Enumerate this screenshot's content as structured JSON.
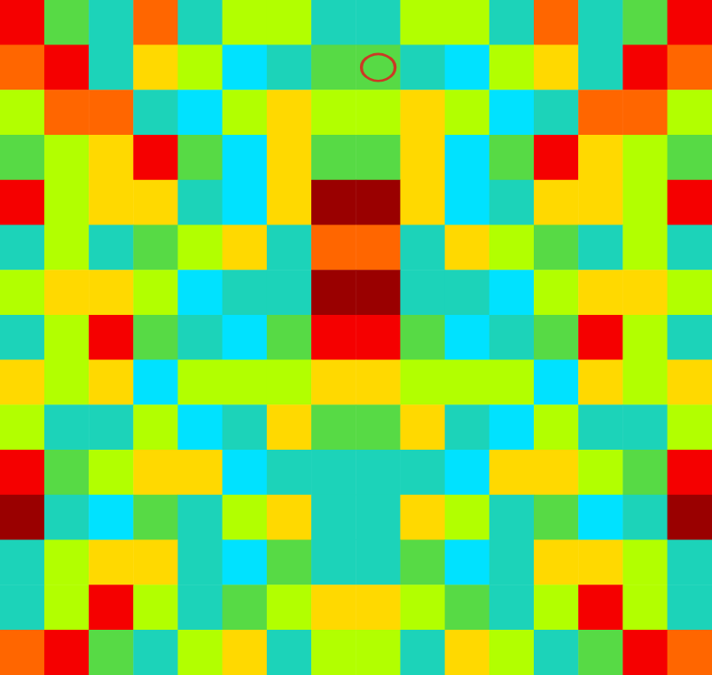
{
  "chart_data": {
    "type": "heatmap",
    "tick_labels": false,
    "grid": false,
    "zlim": [
      0,
      10
    ],
    "cells": [
      [
        9,
        5,
        4,
        8,
        4,
        6,
        6,
        4,
        4,
        6,
        6,
        4,
        8,
        4,
        5,
        9
      ],
      [
        8,
        9,
        4,
        7,
        6,
        3,
        4,
        5,
        5,
        4,
        3,
        6,
        7,
        4,
        9,
        8
      ],
      [
        6,
        8,
        8,
        4,
        3,
        6,
        7,
        6,
        6,
        7,
        6,
        3,
        4,
        8,
        8,
        6
      ],
      [
        5,
        6,
        7,
        9,
        5,
        3,
        7,
        5,
        5,
        7,
        3,
        5,
        9,
        7,
        6,
        5
      ],
      [
        9,
        6,
        7,
        7,
        4,
        3,
        7,
        10,
        10,
        7,
        3,
        4,
        7,
        7,
        6,
        9
      ],
      [
        4,
        6,
        4,
        5,
        6,
        7,
        4,
        8,
        8,
        4,
        7,
        6,
        5,
        4,
        6,
        4
      ],
      [
        6,
        7,
        7,
        6,
        3,
        4,
        4,
        10,
        10,
        4,
        4,
        3,
        6,
        7,
        7,
        6
      ],
      [
        4,
        6,
        9,
        5,
        4,
        3,
        5,
        9,
        9,
        5,
        3,
        4,
        5,
        9,
        6,
        4
      ],
      [
        7,
        6,
        7,
        3,
        6,
        6,
        6,
        7,
        7,
        6,
        6,
        6,
        3,
        7,
        6,
        7
      ],
      [
        6,
        4,
        4,
        6,
        3,
        4,
        7,
        5,
        5,
        7,
        4,
        3,
        6,
        4,
        4,
        6
      ],
      [
        9,
        5,
        6,
        7,
        7,
        3,
        4,
        4,
        4,
        4,
        3,
        7,
        7,
        6,
        5,
        9
      ],
      [
        10,
        4,
        3,
        5,
        4,
        6,
        7,
        4,
        4,
        7,
        6,
        4,
        5,
        3,
        4,
        10
      ],
      [
        4,
        6,
        7,
        7,
        4,
        3,
        5,
        4,
        4,
        5,
        3,
        4,
        7,
        7,
        6,
        4
      ],
      [
        4,
        6,
        9,
        6,
        4,
        5,
        6,
        7,
        7,
        6,
        5,
        4,
        6,
        9,
        6,
        4
      ],
      [
        8,
        9,
        5,
        4,
        6,
        7,
        4,
        6,
        6,
        4,
        7,
        6,
        4,
        5,
        9,
        8
      ]
    ],
    "marked_cell": {
      "col": 8,
      "row": 1,
      "color": "#e8101c"
    }
  }
}
